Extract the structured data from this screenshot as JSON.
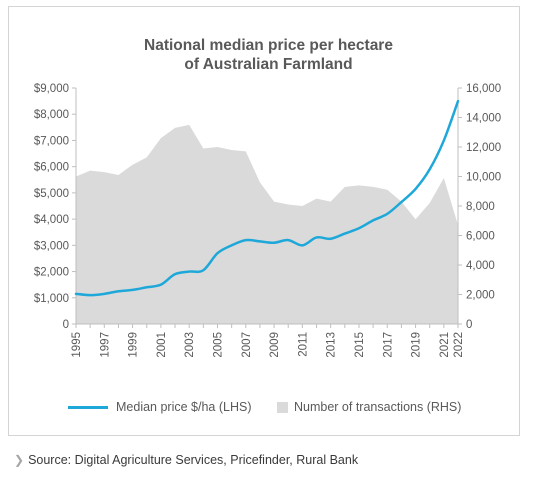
{
  "colors": {
    "line": "#1ea8d9",
    "area": "#dadada",
    "axis": "#bfbfbf",
    "text": "#595959"
  },
  "legend": {
    "line_label": "Median price $/ha (LHS)",
    "area_label": "Number of transactions (RHS)"
  },
  "source": {
    "icon": "chevron-right-icon",
    "text": "Source: Digital Agriculture Services, Pricefinder, Rural Bank"
  },
  "chart_data": {
    "type": "line",
    "title": "National median price per hectare",
    "subtitle": "of Australian Farmland",
    "x": [
      1995,
      1996,
      1997,
      1998,
      1999,
      2000,
      2001,
      2002,
      2003,
      2004,
      2005,
      2006,
      2007,
      2008,
      2009,
      2010,
      2011,
      2012,
      2013,
      2014,
      2015,
      2016,
      2017,
      2018,
      2019,
      2020,
      2021,
      2022
    ],
    "x_tick_labels": [
      "1995",
      "1997",
      "1999",
      "2001",
      "2003",
      "2005",
      "2007",
      "2009",
      "2011",
      "2013",
      "2015",
      "2017",
      "2019",
      "2021",
      "2022"
    ],
    "ylim_left": [
      0,
      9000
    ],
    "ylim_right": [
      0,
      16000
    ],
    "y_left_ticks": [
      "0",
      "$1,000",
      "$2,000",
      "$3,000",
      "$4,000",
      "$5,000",
      "$6,000",
      "$7,000",
      "$8,000",
      "$9,000"
    ],
    "y_right_ticks": [
      "0",
      "2,000",
      "4,000",
      "6,000",
      "8,000",
      "10,000",
      "12,000",
      "14,000",
      "16,000"
    ],
    "grid": false,
    "legend_position": "bottom",
    "series": [
      {
        "name": "Median price $/ha (LHS)",
        "type": "line",
        "axis": "left",
        "values": [
          1150,
          1100,
          1150,
          1250,
          1300,
          1400,
          1500,
          1900,
          2000,
          2050,
          2700,
          3000,
          3200,
          3150,
          3100,
          3200,
          3000,
          3300,
          3250,
          3450,
          3650,
          3950,
          4200,
          4650,
          5150,
          5900,
          7000,
          8500
        ]
      },
      {
        "name": "Number of transactions (RHS)",
        "type": "area",
        "axis": "right",
        "values": [
          10000,
          10400,
          10300,
          10100,
          10800,
          11300,
          12600,
          13300,
          13500,
          11900,
          12000,
          11800,
          11700,
          9600,
          8300,
          8100,
          8000,
          8500,
          8300,
          9300,
          9400,
          9300,
          9100,
          8300,
          7100,
          8200,
          9900,
          6700
        ]
      }
    ]
  }
}
